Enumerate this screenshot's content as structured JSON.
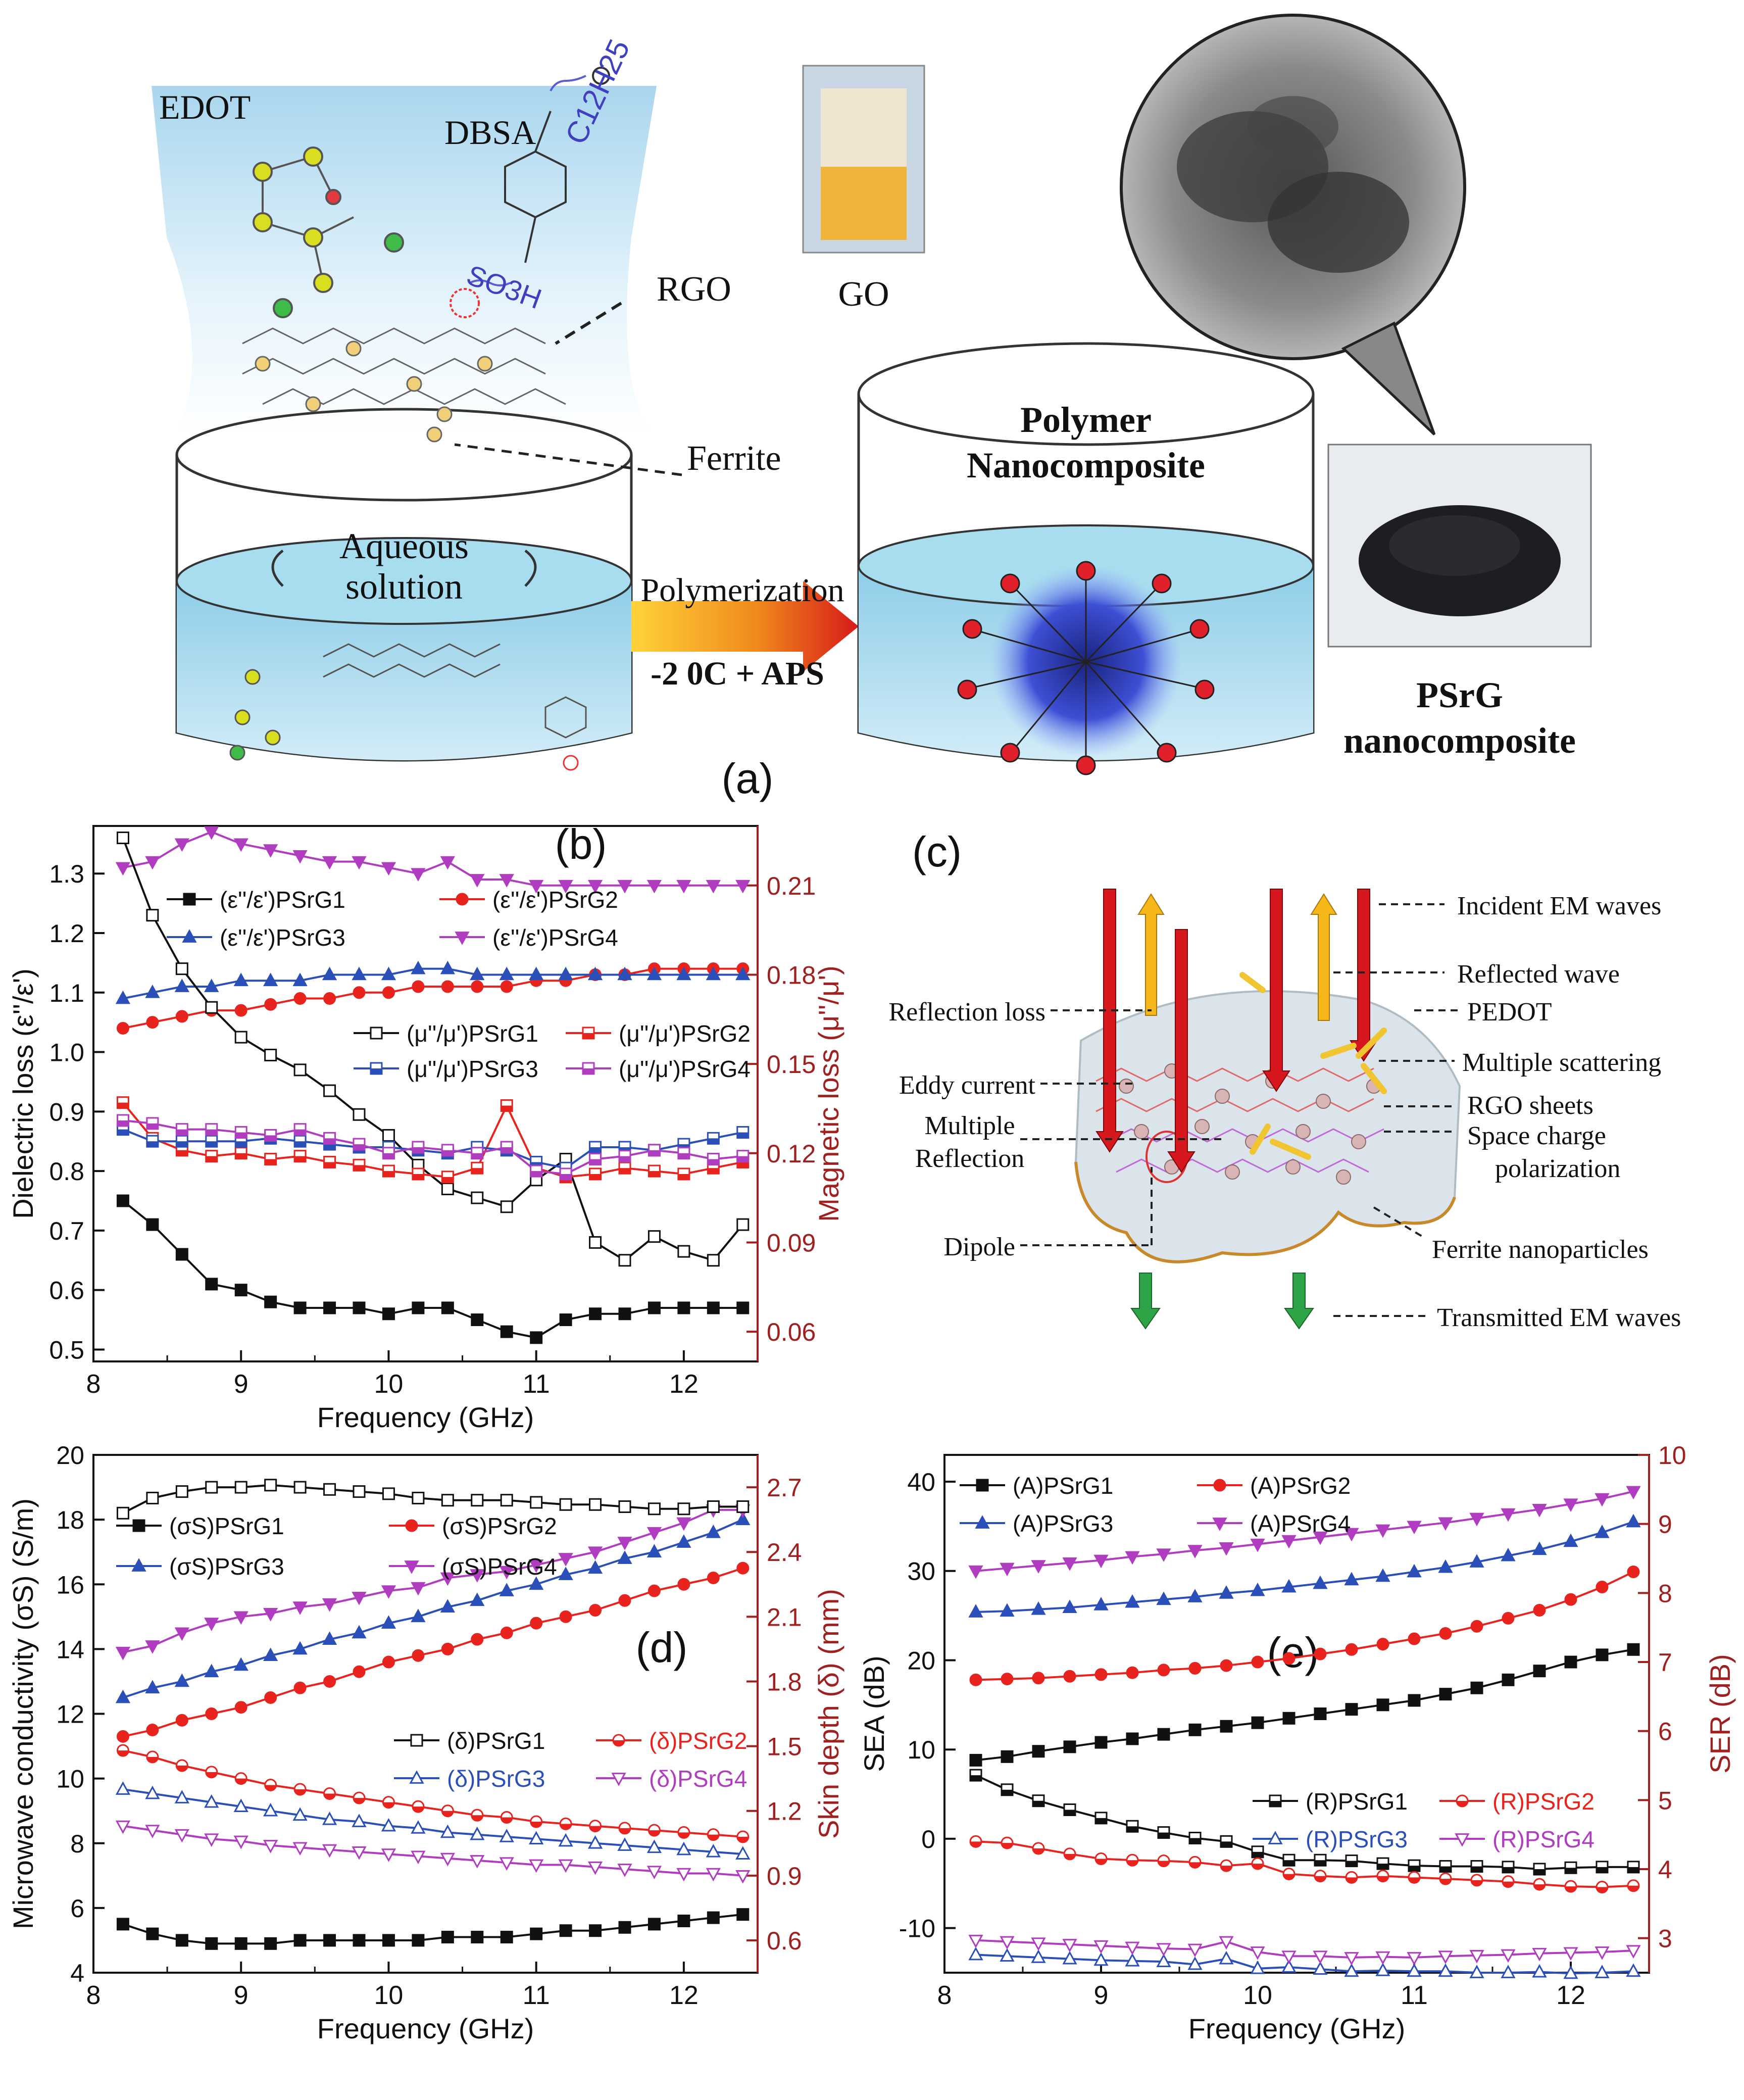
{
  "panel_a": {
    "label": "(a)",
    "edot": "EDOT",
    "dbsa": "DBSA",
    "c12h25": "C12H25",
    "so3h": "SO3H",
    "rgo": "RGO",
    "ferrite": "Ferrite",
    "aqueous_line1": "Aqueous",
    "aqueous_line2": "solution",
    "polymerization": "Polymerization",
    "conditions": "-2 0C + APS",
    "polymer_line1": "Polymer",
    "polymer_line2": "Nanocomposite",
    "go": "GO",
    "psrg_line1": "PSrG",
    "psrg_line2": "nanocomposite"
  },
  "panel_c": {
    "label": "(c)",
    "callouts": [
      "Incident EM waves",
      "Reflected wave",
      "PEDOT",
      "Multiple scattering",
      "RGO sheets",
      "Space charge",
      "polarization",
      "Ferrite nanoparticles",
      "Transmitted EM waves"
    ],
    "left_callouts": [
      "Reflection loss",
      "Eddy current",
      "Multiple",
      "Reflection",
      "Dipole"
    ]
  },
  "colors": {
    "black": "#111111",
    "red": "#e8231d",
    "blue": "#2a4fb8",
    "magenta": "#b03cc0",
    "axis_right": "#a01f1f",
    "water": "#bfe3f2",
    "arrow_red": "#d6171d",
    "arrow_yellow": "#f6c21b",
    "arrow_green": "#2ea446"
  },
  "chart_data": [
    {
      "panel": "b",
      "panel_label": "(b)",
      "type": "line",
      "x_label": "Frequency (GHz)",
      "x_range": [
        8,
        12.5
      ],
      "x_ticks": [
        8,
        9,
        10,
        11,
        12
      ],
      "y_label": "Dielectric loss (ε''/ε')",
      "y_range": [
        0.48,
        1.38
      ],
      "y_ticks": [
        0.5,
        0.6,
        0.7,
        0.8,
        0.9,
        1.0,
        1.1,
        1.2,
        1.3
      ],
      "y2_label": "Magnetic loss (μ''/μ')",
      "y2_range": [
        0.05,
        0.23
      ],
      "y2_ticks": [
        0.06,
        0.09,
        0.12,
        0.15,
        0.18,
        0.21
      ],
      "x": [
        8.2,
        8.4,
        8.6,
        8.8,
        9.0,
        9.2,
        9.4,
        9.6,
        9.8,
        10.0,
        10.2,
        10.4,
        10.6,
        10.8,
        11.0,
        11.2,
        11.4,
        11.6,
        11.8,
        12.0,
        12.2,
        12.4
      ],
      "series": [
        {
          "name": "(ε''/ε')PSrG1",
          "axis": "left",
          "marker": "square",
          "fill": true,
          "color": "black",
          "values": [
            0.75,
            0.71,
            0.66,
            0.61,
            0.6,
            0.58,
            0.57,
            0.57,
            0.57,
            0.56,
            0.57,
            0.57,
            0.55,
            0.53,
            0.52,
            0.55,
            0.56,
            0.56,
            0.57,
            0.57,
            0.57,
            0.57
          ]
        },
        {
          "name": "(ε''/ε')PSrG2",
          "axis": "left",
          "marker": "circle",
          "fill": true,
          "color": "red",
          "values": [
            1.04,
            1.05,
            1.06,
            1.07,
            1.07,
            1.08,
            1.09,
            1.09,
            1.1,
            1.1,
            1.11,
            1.11,
            1.11,
            1.11,
            1.12,
            1.12,
            1.13,
            1.13,
            1.14,
            1.14,
            1.14,
            1.14
          ]
        },
        {
          "name": "(ε''/ε')PSrG3",
          "axis": "left",
          "marker": "triangle",
          "fill": true,
          "color": "blue",
          "values": [
            1.09,
            1.1,
            1.11,
            1.11,
            1.12,
            1.12,
            1.12,
            1.13,
            1.13,
            1.13,
            1.14,
            1.14,
            1.13,
            1.13,
            1.13,
            1.13,
            1.13,
            1.13,
            1.13,
            1.13,
            1.13,
            1.13
          ]
        },
        {
          "name": "(ε''/ε')PSrG4",
          "axis": "left",
          "marker": "triangle-down",
          "fill": true,
          "color": "magenta",
          "values": [
            1.31,
            1.32,
            1.35,
            1.37,
            1.35,
            1.34,
            1.33,
            1.32,
            1.32,
            1.31,
            1.3,
            1.32,
            1.29,
            1.29,
            1.28,
            1.28,
            1.28,
            1.28,
            1.28,
            1.28,
            1.28,
            1.28
          ]
        },
        {
          "name": "(μ''/μ')PSrG1",
          "axis": "right",
          "marker": "square",
          "fill": false,
          "color": "black",
          "values": [
            0.226,
            0.2,
            0.182,
            0.169,
            0.159,
            0.153,
            0.148,
            0.141,
            0.133,
            0.126,
            0.116,
            0.108,
            0.105,
            0.102,
            0.111,
            0.118,
            0.09,
            0.084,
            0.092,
            0.087,
            0.084,
            0.096
          ]
        },
        {
          "name": "(μ''/μ')PSrG2",
          "axis": "right",
          "marker": "half-square",
          "fill": false,
          "color": "red",
          "values": [
            0.137,
            0.125,
            0.121,
            0.119,
            0.12,
            0.118,
            0.119,
            0.117,
            0.116,
            0.114,
            0.113,
            0.112,
            0.115,
            0.136,
            0.115,
            0.112,
            0.113,
            0.115,
            0.114,
            0.113,
            0.115,
            0.117
          ]
        },
        {
          "name": "(μ''/μ')PSrG3",
          "axis": "right",
          "marker": "half-square",
          "fill": false,
          "color": "blue",
          "values": [
            0.128,
            0.124,
            0.124,
            0.124,
            0.124,
            0.125,
            0.124,
            0.123,
            0.122,
            0.122,
            0.121,
            0.12,
            0.122,
            0.121,
            0.117,
            0.115,
            0.122,
            0.122,
            0.121,
            0.123,
            0.125,
            0.127
          ]
        },
        {
          "name": "(μ''/μ')PSrG4",
          "axis": "right",
          "marker": "half-square",
          "fill": false,
          "color": "magenta",
          "values": [
            0.131,
            0.13,
            0.128,
            0.128,
            0.127,
            0.126,
            0.128,
            0.125,
            0.123,
            0.12,
            0.122,
            0.121,
            0.12,
            0.122,
            0.114,
            0.113,
            0.118,
            0.119,
            0.121,
            0.12,
            0.118,
            0.119
          ]
        }
      ]
    },
    {
      "panel": "d",
      "panel_label": "(d)",
      "type": "line",
      "x_label": "Frequency (GHz)",
      "x_range": [
        8,
        12.5
      ],
      "x_ticks": [
        8,
        9,
        10,
        11,
        12
      ],
      "y_label": "Microwave conductivity (σS) (S/m)",
      "y_range": [
        4,
        20
      ],
      "y_ticks": [
        4,
        6,
        8,
        10,
        12,
        14,
        16,
        18,
        20
      ],
      "y2_label": "Skin depth (δ) (mm)",
      "y2_range": [
        0.45,
        2.85
      ],
      "y2_ticks": [
        0.6,
        0.9,
        1.2,
        1.5,
        1.8,
        2.1,
        2.4,
        2.7
      ],
      "x": [
        8.2,
        8.4,
        8.6,
        8.8,
        9.0,
        9.2,
        9.4,
        9.6,
        9.8,
        10.0,
        10.2,
        10.4,
        10.6,
        10.8,
        11.0,
        11.2,
        11.4,
        11.6,
        11.8,
        12.0,
        12.2,
        12.4
      ],
      "series": [
        {
          "name": "(σS)PSrG1",
          "axis": "left",
          "marker": "square",
          "fill": true,
          "color": "black",
          "values": [
            5.5,
            5.2,
            5.0,
            4.9,
            4.9,
            4.9,
            5.0,
            5.0,
            5.0,
            5.0,
            5.0,
            5.1,
            5.1,
            5.1,
            5.2,
            5.3,
            5.3,
            5.4,
            5.5,
            5.6,
            5.7,
            5.8
          ]
        },
        {
          "name": "(σS)PSrG2",
          "axis": "left",
          "marker": "circle",
          "fill": true,
          "color": "red",
          "values": [
            11.3,
            11.5,
            11.8,
            12.0,
            12.2,
            12.5,
            12.8,
            13.0,
            13.3,
            13.6,
            13.8,
            14.0,
            14.3,
            14.5,
            14.8,
            15.0,
            15.2,
            15.5,
            15.8,
            16.0,
            16.2,
            16.5
          ]
        },
        {
          "name": "(σS)PSrG3",
          "axis": "left",
          "marker": "triangle",
          "fill": true,
          "color": "blue",
          "values": [
            12.5,
            12.8,
            13.0,
            13.3,
            13.5,
            13.8,
            14.0,
            14.3,
            14.5,
            14.8,
            15.0,
            15.3,
            15.5,
            15.8,
            16.0,
            16.3,
            16.5,
            16.8,
            17.0,
            17.3,
            17.6,
            18.0
          ]
        },
        {
          "name": "(σS)PSrG4",
          "axis": "left",
          "marker": "triangle-down",
          "fill": true,
          "color": "magenta",
          "values": [
            13.9,
            14.1,
            14.5,
            14.8,
            15.0,
            15.1,
            15.3,
            15.4,
            15.6,
            15.8,
            15.9,
            16.2,
            16.3,
            16.4,
            16.6,
            16.8,
            17.0,
            17.3,
            17.6,
            17.9,
            18.3,
            18.3
          ]
        },
        {
          "name": "(δ)PSrG1",
          "axis": "right",
          "marker": "square",
          "fill": false,
          "color": "black",
          "values": [
            2.58,
            2.65,
            2.68,
            2.7,
            2.7,
            2.71,
            2.7,
            2.69,
            2.68,
            2.67,
            2.65,
            2.64,
            2.64,
            2.64,
            2.63,
            2.62,
            2.62,
            2.61,
            2.6,
            2.6,
            2.61,
            2.61
          ]
        },
        {
          "name": "(δ)PSrG2",
          "axis": "right",
          "marker": "half-circle",
          "fill": false,
          "color": "red",
          "values": [
            1.48,
            1.45,
            1.41,
            1.38,
            1.35,
            1.32,
            1.3,
            1.28,
            1.26,
            1.24,
            1.22,
            1.2,
            1.18,
            1.17,
            1.15,
            1.14,
            1.13,
            1.12,
            1.11,
            1.1,
            1.09,
            1.08
          ]
        },
        {
          "name": "(δ)PSrG3",
          "axis": "right",
          "marker": "triangle",
          "fill": false,
          "color": "blue",
          "values": [
            1.3,
            1.28,
            1.26,
            1.24,
            1.22,
            1.2,
            1.18,
            1.16,
            1.15,
            1.13,
            1.12,
            1.1,
            1.09,
            1.08,
            1.07,
            1.06,
            1.05,
            1.04,
            1.03,
            1.02,
            1.01,
            1.0
          ]
        },
        {
          "name": "(δ)PSrG4",
          "axis": "right",
          "marker": "triangle-down",
          "fill": false,
          "color": "magenta",
          "values": [
            1.13,
            1.11,
            1.09,
            1.07,
            1.06,
            1.04,
            1.03,
            1.02,
            1.01,
            1.0,
            0.99,
            0.98,
            0.97,
            0.96,
            0.95,
            0.95,
            0.94,
            0.93,
            0.92,
            0.91,
            0.91,
            0.9
          ]
        }
      ]
    },
    {
      "panel": "e",
      "panel_label": "(e)",
      "type": "line",
      "x_label": "Frequency (GHz)",
      "x_range": [
        8,
        12.5
      ],
      "x_ticks": [
        8,
        9,
        10,
        11,
        12
      ],
      "y_label": "SEA (dB)",
      "y_range": [
        -15,
        43
      ],
      "y_ticks": [
        -10,
        0,
        10,
        20,
        30,
        40
      ],
      "y2_label": "SER (dB)",
      "y2_range": [
        2.5,
        10
      ],
      "y2_ticks": [
        3,
        4,
        5,
        6,
        7,
        8,
        9,
        10
      ],
      "x": [
        8.2,
        8.4,
        8.6,
        8.8,
        9.0,
        9.2,
        9.4,
        9.6,
        9.8,
        10.0,
        10.2,
        10.4,
        10.6,
        10.8,
        11.0,
        11.2,
        11.4,
        11.6,
        11.8,
        12.0,
        12.2,
        12.4
      ],
      "series": [
        {
          "name": "(A)PSrG1",
          "axis": "left",
          "marker": "square",
          "fill": true,
          "color": "black",
          "values": [
            8.8,
            9.2,
            9.8,
            10.3,
            10.8,
            11.2,
            11.7,
            12.2,
            12.6,
            13.0,
            13.5,
            14.0,
            14.5,
            15.0,
            15.5,
            16.2,
            16.9,
            17.8,
            18.8,
            19.8,
            20.6,
            21.2
          ]
        },
        {
          "name": "(A)PSrG2",
          "axis": "left",
          "marker": "circle",
          "fill": true,
          "color": "red",
          "values": [
            17.8,
            17.9,
            18.0,
            18.2,
            18.4,
            18.6,
            18.9,
            19.1,
            19.4,
            19.8,
            20.2,
            20.7,
            21.2,
            21.8,
            22.4,
            23.0,
            23.8,
            24.7,
            25.6,
            26.8,
            28.2,
            29.9
          ]
        },
        {
          "name": "(A)PSrG3",
          "axis": "left",
          "marker": "triangle",
          "fill": true,
          "color": "blue",
          "values": [
            25.4,
            25.5,
            25.7,
            25.9,
            26.2,
            26.5,
            26.8,
            27.1,
            27.5,
            27.8,
            28.2,
            28.6,
            29.0,
            29.4,
            29.9,
            30.4,
            31.0,
            31.7,
            32.4,
            33.3,
            34.3,
            35.5
          ]
        },
        {
          "name": "(A)PSrG4",
          "axis": "left",
          "marker": "triangle-down",
          "fill": true,
          "color": "magenta",
          "values": [
            30.0,
            30.3,
            30.6,
            30.9,
            31.2,
            31.6,
            31.9,
            32.3,
            32.6,
            33.0,
            33.4,
            33.8,
            34.2,
            34.6,
            35.0,
            35.4,
            35.9,
            36.4,
            36.9,
            37.5,
            38.1,
            38.9
          ]
        },
        {
          "name": "(R)PSrG1",
          "axis": "right",
          "marker": "half-square",
          "fill": false,
          "color": "black",
          "values": [
            5.36,
            5.15,
            4.99,
            4.86,
            4.74,
            4.62,
            4.53,
            4.45,
            4.4,
            4.25,
            4.13,
            4.13,
            4.12,
            4.08,
            4.05,
            4.04,
            4.04,
            4.03,
            4.0,
            4.02,
            4.03,
            4.03
          ]
        },
        {
          "name": "(R)PSrG2",
          "axis": "right",
          "marker": "half-circle",
          "fill": false,
          "color": "red",
          "values": [
            4.4,
            4.38,
            4.3,
            4.22,
            4.15,
            4.13,
            4.12,
            4.1,
            4.05,
            4.08,
            3.93,
            3.9,
            3.88,
            3.9,
            3.88,
            3.86,
            3.84,
            3.82,
            3.78,
            3.75,
            3.74,
            3.76
          ]
        },
        {
          "name": "(R)PSrG3",
          "axis": "right",
          "marker": "triangle",
          "fill": false,
          "color": "blue",
          "values": [
            2.76,
            2.74,
            2.72,
            2.7,
            2.68,
            2.67,
            2.66,
            2.62,
            2.7,
            2.56,
            2.58,
            2.55,
            2.52,
            2.53,
            2.52,
            2.52,
            2.5,
            2.5,
            2.51,
            2.49,
            2.5,
            2.52
          ]
        },
        {
          "name": "(R)PSrG4",
          "axis": "right",
          "marker": "triangle-down",
          "fill": false,
          "color": "magenta",
          "values": [
            2.97,
            2.95,
            2.93,
            2.91,
            2.89,
            2.87,
            2.85,
            2.84,
            2.95,
            2.8,
            2.74,
            2.74,
            2.72,
            2.73,
            2.72,
            2.74,
            2.75,
            2.76,
            2.78,
            2.79,
            2.8,
            2.82
          ]
        }
      ]
    }
  ]
}
